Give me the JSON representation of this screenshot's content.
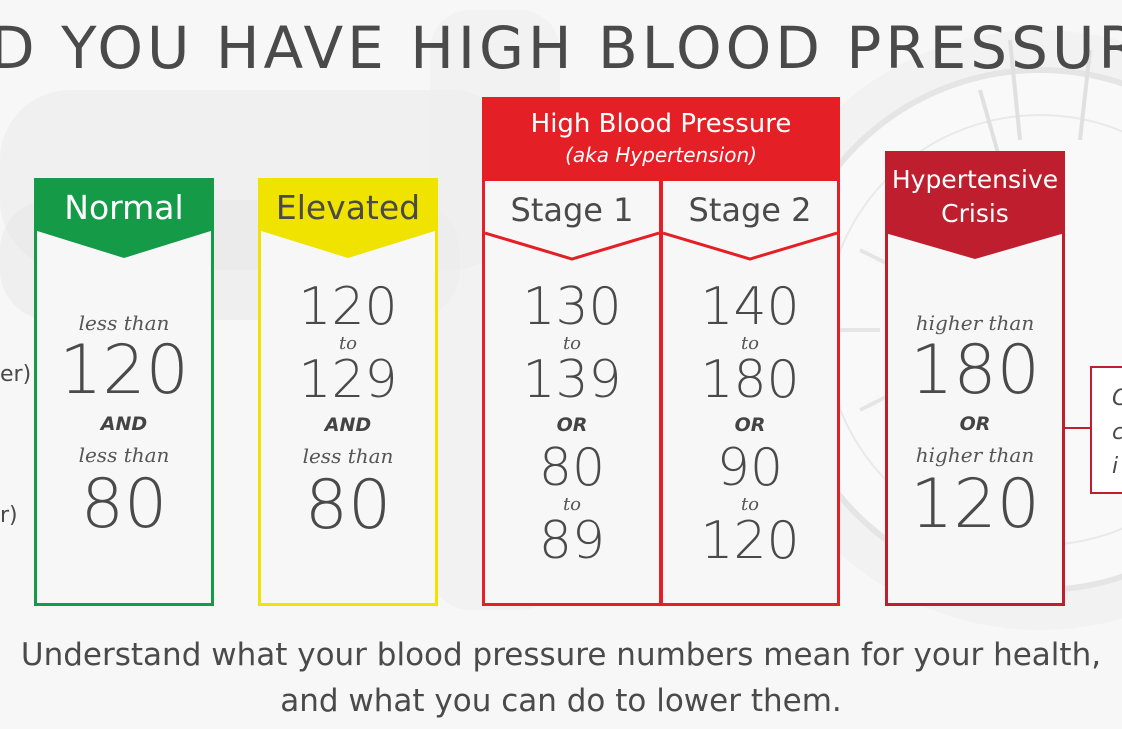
{
  "title": "D YOU HAVE HIGH BLOOD PRESSUR",
  "left_labels": [
    "er)",
    "r)"
  ],
  "colors": {
    "normal": "#159a48",
    "elevated": "#f1e300",
    "high": "#e41f26",
    "crisis": "#be1e2d"
  },
  "high_group": {
    "title": "High Blood Pressure",
    "subtitle": "(aka Hypertension)"
  },
  "categories": [
    {
      "id": "normal",
      "label": "Normal",
      "upper_prefix": "less than",
      "upper": "120",
      "join": "AND",
      "lower_prefix": "less than",
      "lower": "80"
    },
    {
      "id": "elevated",
      "label": "Elevated",
      "upper_from": "120",
      "upper_to_word": "to",
      "upper_to": "129",
      "join": "AND",
      "lower_prefix": "less than",
      "lower": "80"
    },
    {
      "id": "stage1",
      "label": "Stage 1",
      "upper_from": "130",
      "upper_to_word": "to",
      "upper_to": "139",
      "join": "OR",
      "lower_from": "80",
      "lower_to_word": "to",
      "lower_to": "89"
    },
    {
      "id": "stage2",
      "label": "Stage 2",
      "upper_from": "140",
      "upper_to_word": "to",
      "upper_to": "180",
      "join": "OR",
      "lower_from": "90",
      "lower_to_word": "to",
      "lower_to": "120"
    },
    {
      "id": "crisis",
      "label_line1": "Hypertensive",
      "label_line2": "Crisis",
      "upper_prefix": "higher than",
      "upper": "180",
      "join": "OR",
      "lower_prefix": "higher than",
      "lower": "120"
    }
  ],
  "right_fragment": [
    "C",
    "c",
    "i"
  ],
  "footer": {
    "line1": "Understand what your blood pressure numbers mean for your health,",
    "line2": "and what you can do to lower them."
  }
}
